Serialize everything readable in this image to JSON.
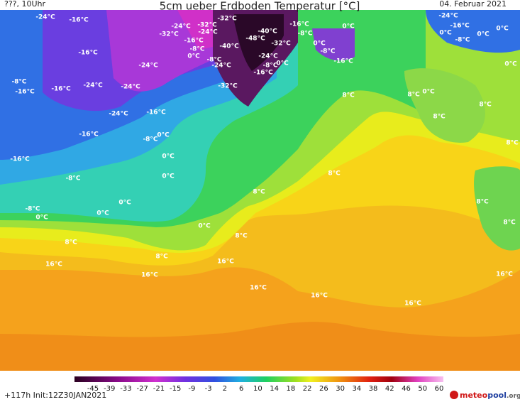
{
  "header": {
    "left": "???, 10Uhr",
    "title": "5cm ueber Erdboden Temperatur [°C]",
    "date": "04. Februar 2021"
  },
  "map_labels": [
    "-24°C",
    "-16°C",
    "-32°C",
    "-32°C",
    "-24°C",
    "-32°C",
    "-24°C",
    "-16°C",
    "-40°C",
    "-48°C",
    "-16°C",
    "-8°C",
    "0°C",
    "-40°C",
    "-32°C",
    "0°C",
    "-8°C",
    "-16°C",
    "-8°C",
    "0°C",
    "-16°C",
    "-24°C",
    "-8°C",
    "-24°C",
    "-8°C",
    "0°C",
    "-16°C",
    "-24°C",
    "-8°C",
    "-16°C",
    "-16°C",
    "-24°C",
    "-24°C",
    "-32°C",
    "8°C",
    "8°C",
    "0°C",
    "-24°C",
    "-16°C",
    "8°C",
    "8°C",
    "-16°C",
    "0°C",
    "-8°C",
    "8°C",
    "-16°C",
    "0°C",
    "-8°C",
    "8°C",
    "0°C",
    "8°C",
    "8°C",
    "0°C",
    "-8°C",
    "0°C",
    "0°C",
    "0°C",
    "8°C",
    "8°C",
    "8°C",
    "8°C",
    "16°C",
    "16°C",
    "16°C",
    "16°C",
    "16°C",
    "16°C",
    "16°C",
    "-24°C",
    "-16°C",
    "0°C",
    "-8°C",
    "0°C",
    "0°C",
    "0°C"
  ],
  "legend": {
    "ticks": [
      -45,
      -39,
      -33,
      -27,
      -21,
      -15,
      -9,
      -3,
      2,
      6,
      10,
      14,
      18,
      22,
      26,
      30,
      34,
      38,
      42,
      46,
      50,
      60
    ]
  },
  "footer": {
    "run": "+117h Init:12Z30JAN2021",
    "brand_a": "meteo",
    "brand_b": "pool",
    "brand_c": ".org"
  }
}
